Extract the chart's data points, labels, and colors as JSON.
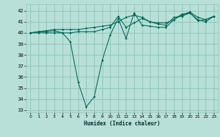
{
  "title": "",
  "xlabel": "Humidex (Indice chaleur)",
  "bg_color": "#b8e0d8",
  "grid_color": "#90c4bc",
  "line_color": "#006858",
  "xlim": [
    -0.5,
    23.5
  ],
  "ylim": [
    32.8,
    42.6
  ],
  "yticks": [
    33,
    34,
    35,
    36,
    37,
    38,
    39,
    40,
    41,
    42
  ],
  "xticks": [
    0,
    1,
    2,
    3,
    4,
    5,
    6,
    7,
    8,
    9,
    10,
    11,
    12,
    13,
    14,
    15,
    16,
    17,
    18,
    19,
    20,
    21,
    22,
    23
  ],
  "series": [
    [
      40.0,
      40.0,
      40.0,
      40.0,
      40.0,
      39.2,
      35.5,
      33.3,
      34.2,
      37.5,
      39.8,
      41.3,
      39.5,
      41.8,
      40.7,
      40.6,
      40.5,
      40.5,
      41.2,
      41.7,
      41.8,
      41.1,
      41.2,
      41.5
    ],
    [
      40.0,
      40.1,
      40.1,
      40.2,
      40.0,
      40.0,
      40.1,
      40.1,
      40.1,
      40.3,
      40.5,
      41.5,
      40.5,
      40.9,
      41.3,
      41.0,
      40.8,
      40.7,
      41.4,
      41.5,
      41.8,
      41.2,
      41.0,
      41.5
    ],
    [
      40.0,
      40.1,
      40.2,
      40.3,
      40.3,
      40.3,
      40.3,
      40.4,
      40.5,
      40.6,
      40.7,
      41.0,
      41.4,
      41.6,
      41.4,
      41.0,
      40.9,
      40.9,
      41.2,
      41.6,
      41.9,
      41.4,
      41.2,
      41.5
    ]
  ]
}
